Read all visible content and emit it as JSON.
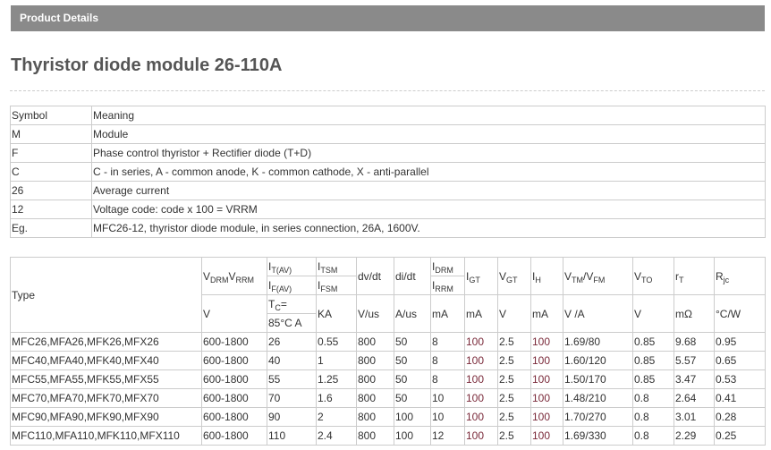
{
  "header": {
    "title": "Product Details"
  },
  "page_title": "Thyristor diode module 26-110A",
  "symbol_table": {
    "headers": [
      "Symbol",
      "Meaning"
    ],
    "rows": [
      [
        "M",
        "Module"
      ],
      [
        "F",
        "Phase control thyristor + Rectifier diode (T+D)"
      ],
      [
        "C",
        "C - in series, A - common anode, K - common cathode, X - anti-parallel"
      ],
      [
        "26",
        "Average current"
      ],
      [
        "12",
        "Voltage code: code x 100 = VRRM"
      ],
      [
        "Eg.",
        "MFC26-12, thyristor diode module, in series connection, 26A, 1600V."
      ]
    ]
  },
  "spec_table": {
    "type_header": "Type",
    "params": {
      "vdrm": {
        "a": "V",
        "a_sub": "DRM",
        "b": "V",
        "b_sub": "RRM",
        "unit": "V"
      },
      "it": {
        "top": "I",
        "top_sub": "T(AV)",
        "bottom": "I",
        "bottom_sub": "F(AV)",
        "unit1": "T",
        "unit1_sub": "C",
        "unit1_rest": "=",
        "unit2": "85°C A"
      },
      "itsm": {
        "top": "I",
        "top_sub": "TSM",
        "bottom": "I",
        "bottom_sub": "FSM",
        "unit": "KA"
      },
      "dvdt": {
        "label": "dv/dt",
        "unit": "V/us"
      },
      "didt": {
        "label": "di/dt",
        "unit": "A/us"
      },
      "idrm": {
        "top": "I",
        "top_sub": "DRM",
        "bottom": "I",
        "bottom_sub": "RRM",
        "unit": "mA"
      },
      "igt": {
        "a": "I",
        "sub": "GT",
        "unit": "mA"
      },
      "vgt": {
        "a": "V",
        "sub": "GT",
        "unit": "V"
      },
      "ih": {
        "a": "I",
        "sub": "H",
        "unit": "mA"
      },
      "vtm": {
        "a": "V",
        "a_sub": "TM",
        "b": "/V",
        "b_sub": "FM",
        "unit": "V /A"
      },
      "vto": {
        "a": "V",
        "sub": "TO",
        "unit": "V"
      },
      "rt": {
        "a": "r",
        "sub": "T",
        "unit": "mΩ"
      },
      "rjc": {
        "a": "R",
        "sub": "jc",
        "unit": "°C/W"
      }
    },
    "rows": [
      [
        "MFC26,MFA26,MFK26,MFX26",
        "600-1800",
        "26",
        "0.55",
        "800",
        "50",
        "8",
        "100",
        "2.5",
        "100",
        "1.69/80",
        "0.85",
        "9.68",
        "0.95"
      ],
      [
        "MFC40,MFA40,MFK40,MFX40",
        "600-1800",
        "40",
        "1",
        "800",
        "50",
        "8",
        "100",
        "2.5",
        "100",
        "1.60/120",
        "0.85",
        "5.57",
        "0.65"
      ],
      [
        "MFC55,MFA55,MFK55,MFX55",
        "600-1800",
        "55",
        "1.25",
        "800",
        "50",
        "8",
        "100",
        "2.5",
        "100",
        "1.50/170",
        "0.85",
        "3.47",
        "0.53"
      ],
      [
        "MFC70,MFA70,MFK70,MFX70",
        "600-1800",
        "70",
        "1.6",
        "800",
        "50",
        "10",
        "100",
        "2.5",
        "100",
        "1.48/210",
        "0.8",
        "2.64",
        "0.41"
      ],
      [
        "MFC90,MFA90,MFK90,MFX90",
        "600-1800",
        "90",
        "2",
        "800",
        "100",
        "10",
        "100",
        "2.5",
        "100",
        "1.70/270",
        "0.8",
        "3.01",
        "0.28"
      ],
      [
        "MFC110,MFA110,MFK110,MFX110",
        "600-1800",
        "110",
        "2.4",
        "800",
        "100",
        "12",
        "100",
        "2.5",
        "100",
        "1.69/330",
        "0.8",
        "2.29",
        "0.25"
      ]
    ]
  }
}
